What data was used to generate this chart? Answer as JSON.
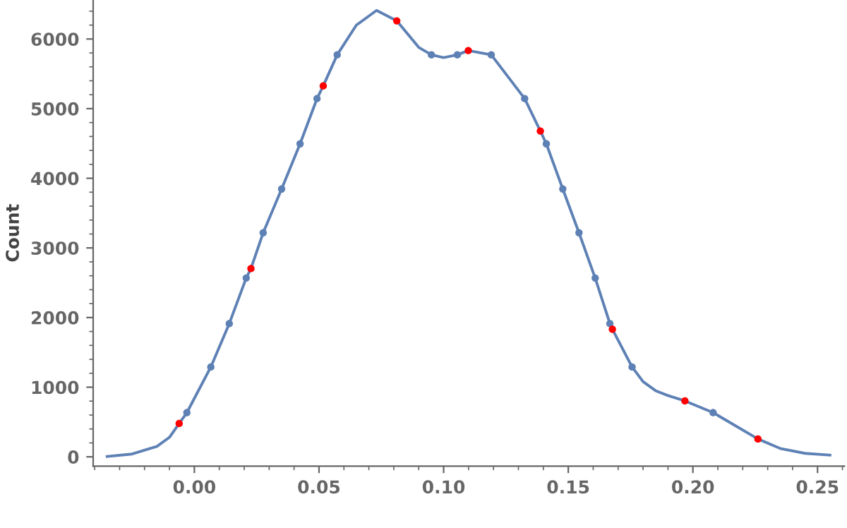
{
  "chart_data": {
    "type": "line",
    "ylabel": "Count",
    "xlim": [
      -0.0406,
      0.2608
    ],
    "ylim": [
      -135,
      6560
    ],
    "xticks": [
      {
        "value": 0,
        "label": "0.00"
      },
      {
        "value": 0.05,
        "label": "0.05"
      },
      {
        "value": 0.1,
        "label": "0.10"
      },
      {
        "value": 0.15,
        "label": "0.15"
      },
      {
        "value": 0.2,
        "label": "0.20"
      },
      {
        "value": 0.25,
        "label": "0.25"
      }
    ],
    "yticks": [
      0,
      1000,
      2000,
      3000,
      4000,
      5000,
      6000
    ],
    "grid": false,
    "series": [
      {
        "type": "line",
        "color": "#5e81b5",
        "marker": "none",
        "line_style": "solid",
        "x": [
          -0.035,
          -0.025,
          -0.015,
          -0.01,
          -0.0061,
          -0.003,
          0.0066,
          0.014,
          0.0208,
          0.0227,
          0.0276,
          0.035,
          0.0424,
          0.0492,
          0.0517,
          0.0573,
          0.065,
          0.0731,
          0.0812,
          0.09,
          0.0951,
          0.1,
          0.1055,
          0.1099,
          0.1191,
          0.1325,
          0.1388,
          0.1412,
          0.1478,
          0.1543,
          0.1608,
          0.1667,
          0.1677,
          0.1756,
          0.18,
          0.185,
          0.19,
          0.1968,
          0.2081,
          0.2261,
          0.235,
          0.245,
          0.255
        ],
        "values": [
          5,
          40,
          150,
          280,
          479,
          635,
          1290,
          1913,
          2568,
          2704,
          3217,
          3846,
          4495,
          5144,
          5327,
          5773,
          6200,
          6410,
          6260,
          5880,
          5773,
          5733,
          5773,
          5834,
          5773,
          5144,
          4678,
          4495,
          3846,
          3217,
          2568,
          1913,
          1832,
          1290,
          1080,
          950,
          880,
          803,
          635,
          256,
          120,
          50,
          25
        ]
      },
      {
        "type": "scatter",
        "color": "#5e81b5",
        "marker": "circle",
        "x": [
          -0.003,
          0.0066,
          0.014,
          0.0208,
          0.0276,
          0.035,
          0.0424,
          0.0492,
          0.0573,
          0.0951,
          0.1055,
          0.1191,
          0.1325,
          0.1412,
          0.1478,
          0.1543,
          0.1608,
          0.1667,
          0.1756,
          0.2081
        ],
        "values": [
          635,
          1290,
          1913,
          2568,
          3217,
          3846,
          4495,
          5144,
          5773,
          5773,
          5773,
          5773,
          5144,
          4495,
          3846,
          3217,
          2568,
          1913,
          1290,
          635
        ]
      },
      {
        "type": "scatter",
        "color": "#ff0000",
        "marker": "circle",
        "x": [
          -0.0061,
          0.0227,
          0.0517,
          0.0812,
          0.1099,
          0.1388,
          0.1677,
          0.1968,
          0.2261
        ],
        "values": [
          479,
          2704,
          5327,
          6260,
          5834,
          4678,
          1832,
          803,
          256
        ]
      }
    ]
  }
}
